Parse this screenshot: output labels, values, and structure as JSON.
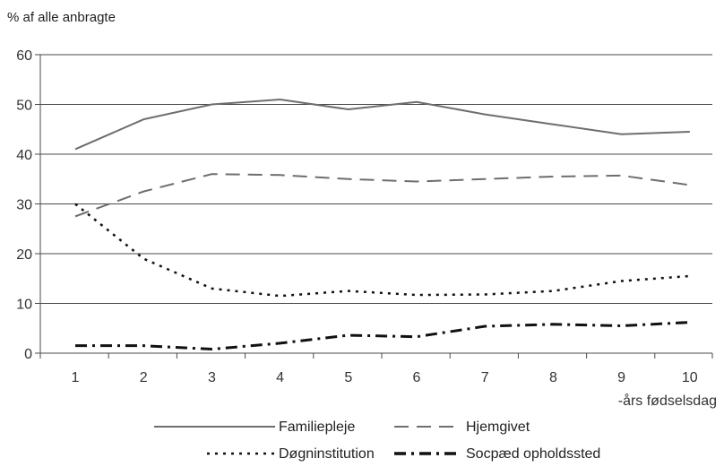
{
  "chart_data": {
    "type": "line",
    "title": "",
    "ylabel": "% af alle anbragte",
    "xlabel": "-års fødselsdag",
    "x": [
      1,
      2,
      3,
      4,
      5,
      6,
      7,
      8,
      9,
      10
    ],
    "ylim": [
      0,
      60
    ],
    "yticks": [
      0,
      10,
      20,
      30,
      40,
      50,
      60
    ],
    "grid": true,
    "legend_position": "bottom",
    "series": [
      {
        "name": "Familiepleje",
        "values": [
          41,
          47,
          50,
          51,
          49,
          50.5,
          48,
          46,
          44,
          44.5
        ],
        "style": "solid",
        "color": "#6e6e6e"
      },
      {
        "name": "Hjemgivet",
        "values": [
          27.5,
          32.5,
          36,
          35.8,
          35,
          34.5,
          35,
          35.5,
          35.7,
          33.8
        ],
        "style": "dashed",
        "color": "#6e6e6e"
      },
      {
        "name": "Døgninstitution",
        "values": [
          30,
          19,
          13,
          11.5,
          12.5,
          11.7,
          11.8,
          12.5,
          14.5,
          15.5
        ],
        "style": "dotted",
        "color": "#111111"
      },
      {
        "name": "Socpæd opholdssted",
        "values": [
          1.5,
          1.5,
          0.8,
          2,
          3.6,
          3.3,
          5.4,
          5.8,
          5.5,
          6.2
        ],
        "style": "dashdot",
        "color": "#111111"
      }
    ]
  }
}
